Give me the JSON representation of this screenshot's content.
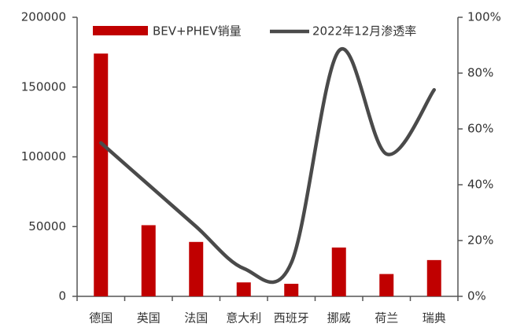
{
  "chart_data": {
    "type": "bar",
    "categories": [
      "德国",
      "英国",
      "法国",
      "意大利",
      "西班牙",
      "挪威",
      "荷兰",
      "瑞典"
    ],
    "series": [
      {
        "name": "BEV+PHEV销量",
        "color": "#c00000",
        "type": "bar",
        "values": [
          174000,
          51000,
          39000,
          10000,
          9000,
          35000,
          16000,
          26000
        ]
      },
      {
        "name": "2022年12月渗透率",
        "color": "#4a4a4a",
        "type": "line",
        "axis": "y2",
        "values": [
          55,
          40,
          25,
          10,
          12,
          88,
          51,
          74
        ]
      }
    ],
    "ylim": [
      0,
      200000
    ],
    "yticks": [
      0,
      50000,
      100000,
      150000,
      200000
    ],
    "y2lim": [
      0,
      100
    ],
    "y2ticks": [
      {
        "value": 0,
        "label": "0%"
      },
      {
        "value": 20,
        "label": "20%"
      },
      {
        "value": 40,
        "label": "40%"
      },
      {
        "value": 60,
        "label": "60%"
      },
      {
        "value": 80,
        "label": "80%"
      },
      {
        "value": 100,
        "label": "100%"
      }
    ],
    "legend": "top"
  }
}
